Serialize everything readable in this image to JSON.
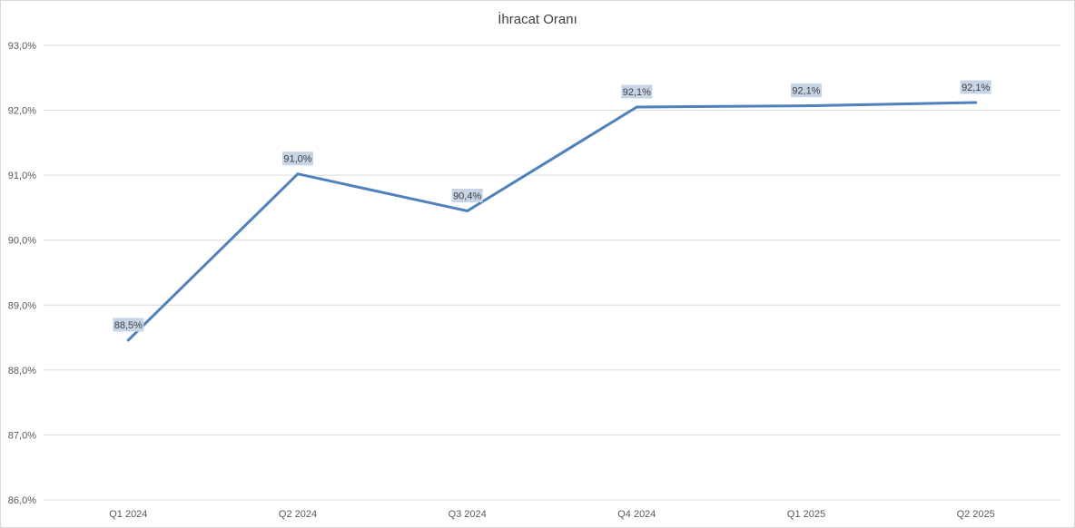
{
  "chart_data": {
    "type": "line",
    "title": "İhracat Oranı",
    "categories": [
      "Q1 2024",
      "Q2 2024",
      "Q3 2024",
      "Q4 2024",
      "Q1 2025",
      "Q2 2025"
    ],
    "series": [
      {
        "values": [
          88.46,
          91.02,
          90.45,
          92.05,
          92.07,
          92.12
        ],
        "data_labels": [
          "88,5%",
          "91,0%",
          "90,4%",
          "92,1%",
          "92,1%",
          "92,1%"
        ],
        "color": "#4f81bd"
      }
    ],
    "ylim": [
      86.0,
      93.0
    ],
    "y_ticks": [
      {
        "value": 86.0,
        "label": "86,0%"
      },
      {
        "value": 87.0,
        "label": "87,0%"
      },
      {
        "value": 88.0,
        "label": "88,0%"
      },
      {
        "value": 89.0,
        "label": "89,0%"
      },
      {
        "value": 90.0,
        "label": "90,0%"
      },
      {
        "value": 91.0,
        "label": "91,0%"
      },
      {
        "value": 92.0,
        "label": "92,0%"
      },
      {
        "value": 93.0,
        "label": "93,0%"
      }
    ],
    "xlabel": "",
    "ylabel": "",
    "grid": true,
    "legend": "none",
    "colors": {
      "line": "#4f81bd",
      "label_background": "#c6d4e6",
      "gridline": "#d9d9d9"
    }
  }
}
